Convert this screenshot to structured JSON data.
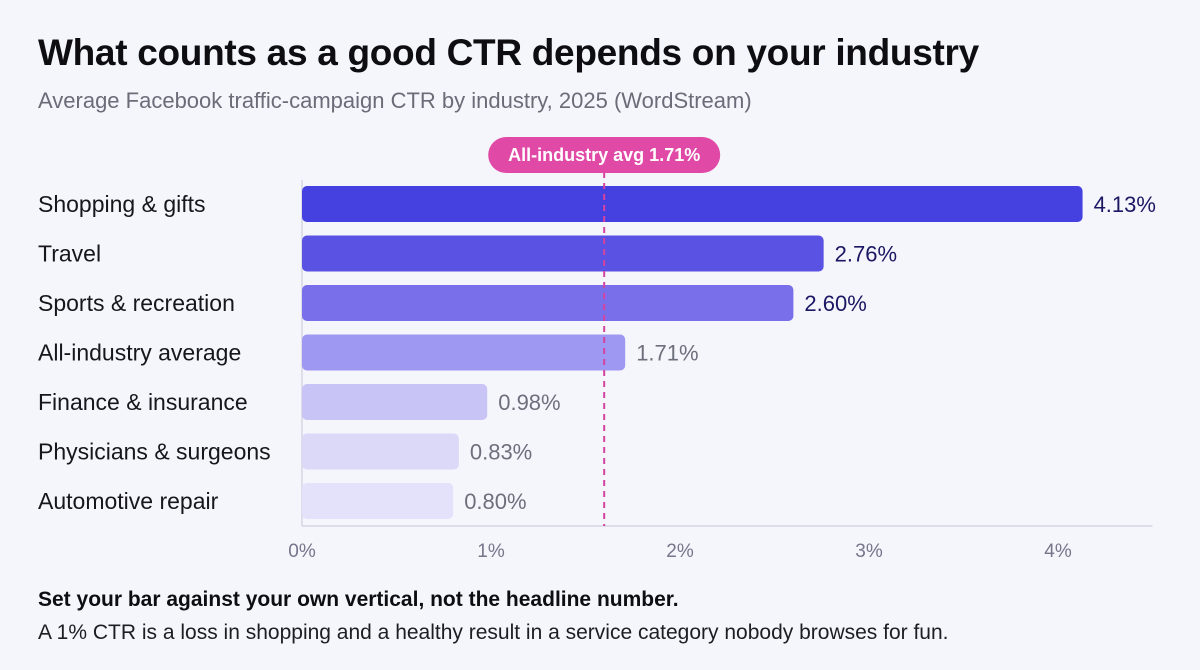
{
  "header": {
    "title": "What counts as a good CTR depends on your industry",
    "subtitle": "Average Facebook traffic-campaign CTR by industry, 2025 (WordStream)"
  },
  "footer": {
    "headline": "Set your bar against your own vertical, not the headline number.",
    "body": "A 1% CTR is a loss in shopping and a healthy result in a service category nobody browses for fun."
  },
  "chart_data": {
    "type": "bar",
    "orientation": "horizontal",
    "categories": [
      "Shopping & gifts",
      "Travel",
      "Sports & recreation",
      "All-industry average",
      "Finance & insurance",
      "Physicians & surgeons",
      "Automotive repair"
    ],
    "values": [
      4.13,
      2.76,
      2.6,
      1.71,
      0.98,
      0.83,
      0.8
    ],
    "value_labels": [
      "4.13%",
      "2.76%",
      "2.60%",
      "1.71%",
      "0.98%",
      "0.83%",
      "0.80%"
    ],
    "bar_colors": [
      "#4540e0",
      "#5a52e2",
      "#7a6fea",
      "#9e98f3",
      "#c9c4f6",
      "#dcd8f8",
      "#e4e1fa"
    ],
    "xlim": [
      0,
      4.5
    ],
    "xticks": [
      0,
      1,
      2,
      3,
      4
    ],
    "xtick_labels": [
      "0%",
      "1%",
      "2%",
      "3%",
      "4%"
    ],
    "reference_line": {
      "value": 1.71,
      "label": "All-industry avg 1.71%",
      "color": "#d5439e"
    },
    "grid": false
  }
}
